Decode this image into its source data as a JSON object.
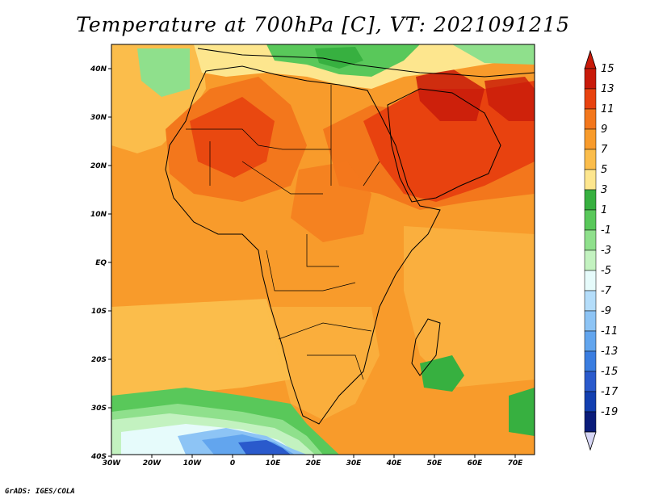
{
  "title": "Temperature at 700hPa [C], VT: 2021091215",
  "credit": "GrADS: IGES/COLA",
  "map": {
    "lat_labels": [
      "40N",
      "30N",
      "20N",
      "10N",
      "EQ",
      "10S",
      "20S",
      "30S",
      "40S"
    ],
    "lon_labels": [
      "30W",
      "20W",
      "10W",
      "0",
      "10E",
      "20E",
      "30E",
      "40E",
      "50E",
      "60E",
      "70E"
    ]
  },
  "colorbar": {
    "levels": [
      {
        "label": "15",
        "color": "#c81a0a"
      },
      {
        "label": "13",
        "color": "#e8420f"
      },
      {
        "label": "11",
        "color": "#f3771c"
      },
      {
        "label": "9",
        "color": "#f89b2b"
      },
      {
        "label": "7",
        "color": "#fbbd4b"
      },
      {
        "label": "5",
        "color": "#fde68e"
      },
      {
        "label": "3",
        "color": "#37b040"
      },
      {
        "label": "1",
        "color": "#59c85a"
      },
      {
        "label": "-1",
        "color": "#8fe08c"
      },
      {
        "label": "-3",
        "color": "#c3f2c0"
      },
      {
        "label": "-5",
        "color": "#e6fbfb"
      },
      {
        "label": "-7",
        "color": "#b4ddfa"
      },
      {
        "label": "-9",
        "color": "#8dc4f5"
      },
      {
        "label": "-11",
        "color": "#62a5ee"
      },
      {
        "label": "-13",
        "color": "#3a7de0"
      },
      {
        "label": "-15",
        "color": "#2a5acc"
      },
      {
        "label": "-17",
        "color": "#123fb0"
      },
      {
        "label": "-19",
        "color": "#0a1c7a"
      }
    ],
    "top_color": "#c81a0a",
    "bottom_color": "#d6d6f5"
  }
}
